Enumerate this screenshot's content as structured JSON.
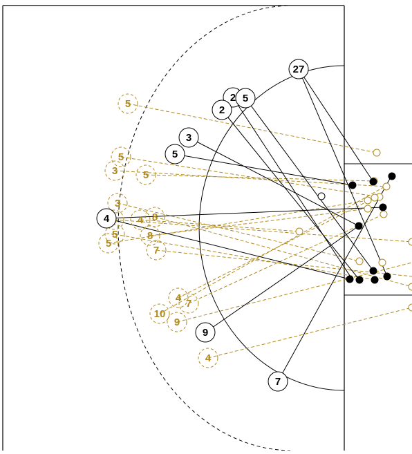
{
  "colors": {
    "teamA": "#000000",
    "teamB": "#b08a1e",
    "background": "#ffffff",
    "court": "#000000"
  },
  "legend": [],
  "players": {
    "teamA": [
      {
        "label": "27",
        "pos": [
          432,
          100
        ],
        "ends": [
          [
            540,
            263
          ],
          [
            560,
            400
          ]
        ]
      },
      {
        "label": "2",
        "pos": [
          337,
          141
        ],
        "ends": [
          [
            510,
            405
          ]
        ]
      },
      {
        "label": "5",
        "pos": [
          355,
          142
        ],
        "ends": [
          [
            540,
            392
          ]
        ]
      },
      {
        "label": "2",
        "pos": [
          321,
          159
        ],
        "ends": [
          [
            520,
            405
          ]
        ]
      },
      {
        "label": "3",
        "pos": [
          273,
          199
        ],
        "ends": [
          [
            519,
            327
          ]
        ]
      },
      {
        "label": "5",
        "pos": [
          253,
          223
        ],
        "ends": [
          [
            510,
            268
          ]
        ]
      },
      {
        "label": "4",
        "pos": [
          154,
          316
        ],
        "ends": [
          [
            506,
            404
          ],
          [
            554,
            300
          ]
        ]
      },
      {
        "label": "9",
        "pos": [
          297,
          481
        ],
        "ends": [
          [
            519,
            327
          ]
        ]
      },
      {
        "label": "7",
        "pos": [
          402,
          552
        ],
        "ends": [
          [
            566,
            255
          ]
        ]
      }
    ],
    "teamB": [
      {
        "label": "5",
        "pos": [
          185,
          150
        ],
        "ends": [
          [
            545,
            221
          ]
        ]
      },
      {
        "label": "5",
        "pos": [
          175,
          227
        ],
        "ends": [
          [
            549,
            285
          ]
        ]
      },
      {
        "label": "3",
        "pos": [
          166,
          247
        ],
        "ends": [
          [
            559,
            270
          ]
        ]
      },
      {
        "label": "5",
        "pos": [
          211,
          253
        ],
        "ends": [
          [
            541,
            262
          ]
        ]
      },
      {
        "label": "3",
        "pos": [
          170,
          294
        ],
        "ends": [
          [
            520,
            378
          ]
        ]
      },
      {
        "label": "4",
        "pos": [
          203,
          318
        ],
        "ends": [
          [
            433,
            335
          ]
        ]
      },
      {
        "label": "8",
        "pos": [
          224,
          314
        ],
        "ends": [
          [
            596,
            415
          ]
        ]
      },
      {
        "label": "5",
        "pos": [
          165,
          318
        ],
        "ends": [
          [
            596,
            350
          ]
        ]
      },
      {
        "label": "5",
        "pos": [
          166,
          339
        ],
        "ends": [
          [
            542,
            405
          ]
        ]
      },
      {
        "label": "8",
        "pos": [
          217,
          341
        ],
        "ends": [
          [
            532,
            302
          ]
        ]
      },
      {
        "label": "5",
        "pos": [
          157,
          352
        ],
        "ends": [
          [
            532,
            290
          ]
        ]
      },
      {
        "label": "7",
        "pos": [
          226,
          362
        ],
        "ends": [
          [
            596,
            400
          ]
        ]
      },
      {
        "label": "4",
        "pos": [
          258,
          431
        ],
        "ends": [
          [
            542,
            286
          ]
        ]
      },
      {
        "label": "7",
        "pos": [
          273,
          439
        ],
        "ends": [
          [
            555,
            310
          ]
        ]
      },
      {
        "label": "10",
        "pos": [
          231,
          454
        ],
        "ends": [
          [
            560,
            268
          ]
        ]
      },
      {
        "label": "9",
        "pos": [
          256,
          466
        ],
        "ends": [
          [
            596,
            380
          ]
        ]
      },
      {
        "label": "4",
        "pos": [
          301,
          518
        ],
        "ends": [
          [
            596,
            445
          ]
        ]
      }
    ]
  },
  "landing": {
    "teamA_filled": [
      [
        540,
        263
      ],
      [
        567,
        255
      ],
      [
        554,
        300
      ],
      [
        519,
        327
      ],
      [
        510,
        268
      ],
      [
        506,
        404
      ],
      [
        520,
        405
      ],
      [
        542,
        405
      ],
      [
        540,
        392
      ],
      [
        560,
        400
      ]
    ],
    "teamA_open": [
      [
        465,
        284
      ]
    ],
    "teamB_open": [
      [
        545,
        221
      ],
      [
        549,
        285
      ],
      [
        559,
        270
      ],
      [
        541,
        262
      ],
      [
        532,
        290
      ],
      [
        532,
        302
      ],
      [
        542,
        286
      ],
      [
        555,
        310
      ],
      [
        433,
        335
      ],
      [
        596,
        415
      ],
      [
        596,
        445
      ],
      [
        520,
        378
      ],
      [
        553,
        380
      ],
      [
        542,
        405
      ],
      [
        596,
        350
      ]
    ]
  }
}
